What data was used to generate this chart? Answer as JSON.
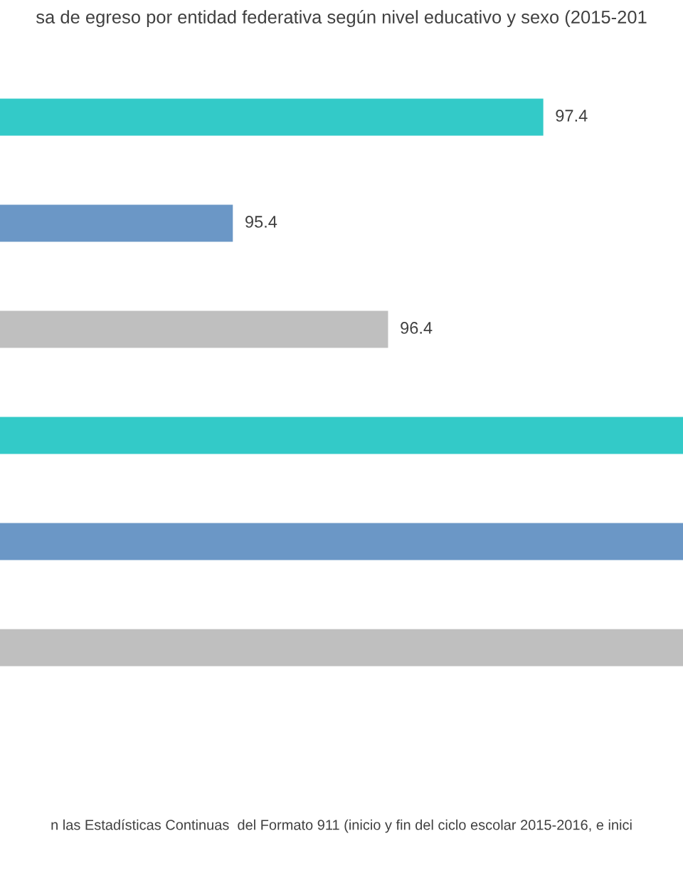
{
  "chart_data": {
    "type": "bar",
    "orientation": "horizontal",
    "title": "sa de egreso por entidad federativa según nivel educativo y sexo (2015-201",
    "categories": [
      null,
      null,
      null,
      null,
      null,
      null
    ],
    "values": [
      97.4,
      95.4,
      96.4,
      98.3,
      98.3,
      98.3
    ],
    "colors": [
      "#33cac8",
      "#6b97c6",
      "#bfbfbf",
      "#33cac8",
      "#6b97c6",
      "#bfbfbf"
    ],
    "value_labels": [
      "97.4",
      "95.4",
      "96.4",
      null,
      null,
      null
    ],
    "xlim": [
      93.9,
      98.3
    ],
    "annotations": [
      "n las Estadísticas Continuas  del Formato 911 (inicio y fin del ciclo escolar 2015-2016, e inici"
    ]
  }
}
